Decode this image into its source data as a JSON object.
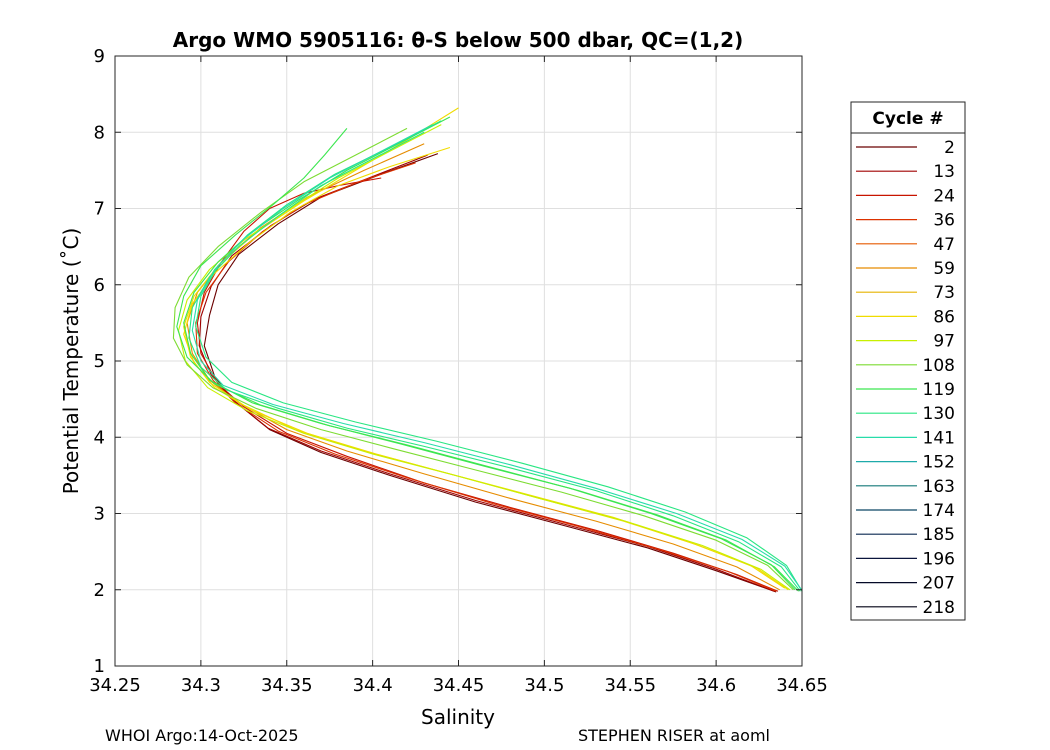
{
  "chart_data": {
    "type": "line",
    "title": "Argo WMO 5905116: θ-S below 500 dbar,  QC=(1,2)",
    "xlabel": "Salinity",
    "ylabel": "Potential Temperature (˚C)",
    "xlim": [
      34.25,
      34.65
    ],
    "ylim": [
      1,
      9
    ],
    "xticks": [
      "34.25",
      "34.3",
      "34.35",
      "34.4",
      "34.45",
      "34.5",
      "34.55",
      "34.6",
      "34.65"
    ],
    "yticks": [
      "1",
      "2",
      "3",
      "4",
      "5",
      "6",
      "7",
      "8",
      "9"
    ],
    "grid": true,
    "legend_position": "right-outside",
    "legend_title": "Cycle #",
    "legend": [
      {
        "label": "2",
        "color": "#6b0000"
      },
      {
        "label": "13",
        "color": "#a00000"
      },
      {
        "label": "24",
        "color": "#c81400"
      },
      {
        "label": "36",
        "color": "#dc3200"
      },
      {
        "label": "47",
        "color": "#e65a00"
      },
      {
        "label": "59",
        "color": "#e68c00"
      },
      {
        "label": "73",
        "color": "#e6b400"
      },
      {
        "label": "86",
        "color": "#f0dc00"
      },
      {
        "label": "97",
        "color": "#c8f000"
      },
      {
        "label": "108",
        "color": "#7ddc32"
      },
      {
        "label": "119",
        "color": "#3ce650"
      },
      {
        "label": "130",
        "color": "#28e682"
      },
      {
        "label": "141",
        "color": "#28dcaa"
      },
      {
        "label": "152",
        "color": "#1eaaaa"
      },
      {
        "label": "163",
        "color": "#147878"
      },
      {
        "label": "174",
        "color": "#0a4664"
      },
      {
        "label": "185",
        "color": "#0a2850"
      },
      {
        "label": "196",
        "color": "#0a143c"
      },
      {
        "label": "207",
        "color": "#050a28"
      },
      {
        "label": "218",
        "color": "#000014"
      }
    ],
    "series": [
      {
        "color": "#6b0000",
        "points": [
          [
            34.438,
            7.72
          ],
          [
            34.405,
            7.45
          ],
          [
            34.37,
            7.15
          ],
          [
            34.345,
            6.8
          ],
          [
            34.322,
            6.4
          ],
          [
            34.31,
            6.0
          ],
          [
            34.305,
            5.6
          ],
          [
            34.302,
            5.2
          ],
          [
            34.308,
            4.8
          ],
          [
            34.318,
            4.5
          ],
          [
            34.34,
            4.1
          ],
          [
            34.37,
            3.8
          ],
          [
            34.41,
            3.5
          ],
          [
            34.46,
            3.15
          ],
          [
            34.51,
            2.85
          ],
          [
            34.56,
            2.55
          ],
          [
            34.6,
            2.25
          ],
          [
            34.635,
            1.97
          ]
        ]
      },
      {
        "color": "#a00000",
        "points": [
          [
            34.432,
            7.7
          ],
          [
            34.4,
            7.42
          ],
          [
            34.366,
            7.12
          ],
          [
            34.341,
            6.78
          ],
          [
            34.318,
            6.38
          ],
          [
            34.306,
            5.98
          ],
          [
            34.3,
            5.58
          ],
          [
            34.299,
            5.2
          ],
          [
            34.306,
            4.82
          ],
          [
            34.317,
            4.52
          ],
          [
            34.339,
            4.12
          ],
          [
            34.37,
            3.82
          ],
          [
            34.41,
            3.52
          ],
          [
            34.46,
            3.17
          ],
          [
            34.51,
            2.87
          ],
          [
            34.56,
            2.57
          ],
          [
            34.6,
            2.27
          ],
          [
            34.634,
            1.98
          ]
        ]
      },
      {
        "color": "#c81400",
        "points": [
          [
            34.405,
            7.4
          ],
          [
            34.38,
            7.3
          ],
          [
            34.36,
            7.2
          ],
          [
            34.34,
            7.0
          ],
          [
            34.325,
            6.7
          ],
          [
            34.312,
            6.3
          ],
          [
            34.302,
            5.9
          ],
          [
            34.298,
            5.5
          ],
          [
            34.3,
            5.1
          ],
          [
            34.31,
            4.7
          ],
          [
            34.325,
            4.4
          ],
          [
            34.35,
            4.05
          ],
          [
            34.385,
            3.75
          ],
          [
            34.43,
            3.4
          ],
          [
            34.48,
            3.08
          ],
          [
            34.53,
            2.78
          ],
          [
            34.575,
            2.48
          ],
          [
            34.612,
            2.2
          ],
          [
            34.636,
            1.98
          ]
        ]
      },
      {
        "color": "#dc3200",
        "points": [
          [
            34.425,
            7.6
          ],
          [
            34.392,
            7.35
          ],
          [
            34.36,
            7.05
          ],
          [
            34.336,
            6.7
          ],
          [
            34.316,
            6.3
          ],
          [
            34.303,
            5.9
          ],
          [
            34.297,
            5.5
          ],
          [
            34.298,
            5.1
          ],
          [
            34.307,
            4.75
          ],
          [
            34.32,
            4.45
          ],
          [
            34.345,
            4.08
          ],
          [
            34.378,
            3.78
          ],
          [
            34.42,
            3.47
          ],
          [
            34.47,
            3.13
          ],
          [
            34.52,
            2.83
          ],
          [
            34.568,
            2.52
          ],
          [
            34.607,
            2.24
          ],
          [
            34.635,
            1.98
          ]
        ]
      },
      {
        "color": "#e68c00",
        "points": [
          [
            34.43,
            7.85
          ],
          [
            34.395,
            7.5
          ],
          [
            34.362,
            7.15
          ],
          [
            34.335,
            6.75
          ],
          [
            34.312,
            6.3
          ],
          [
            34.298,
            5.9
          ],
          [
            34.292,
            5.5
          ],
          [
            34.295,
            5.1
          ],
          [
            34.305,
            4.75
          ],
          [
            34.322,
            4.45
          ],
          [
            34.35,
            4.1
          ],
          [
            34.385,
            3.82
          ],
          [
            34.43,
            3.52
          ],
          [
            34.48,
            3.2
          ],
          [
            34.53,
            2.9
          ],
          [
            34.575,
            2.6
          ],
          [
            34.612,
            2.3
          ],
          [
            34.637,
            2.0
          ]
        ]
      },
      {
        "color": "#f0dc00",
        "points": [
          [
            34.45,
            8.32
          ],
          [
            34.42,
            7.9
          ],
          [
            34.39,
            7.5
          ],
          [
            34.36,
            7.1
          ],
          [
            34.333,
            6.7
          ],
          [
            34.31,
            6.25
          ],
          [
            34.296,
            5.85
          ],
          [
            34.29,
            5.45
          ],
          [
            34.294,
            5.05
          ],
          [
            34.305,
            4.72
          ],
          [
            34.325,
            4.42
          ],
          [
            34.355,
            4.1
          ],
          [
            34.395,
            3.82
          ],
          [
            34.44,
            3.55
          ],
          [
            34.49,
            3.25
          ],
          [
            34.54,
            2.95
          ],
          [
            34.585,
            2.62
          ],
          [
            34.62,
            2.32
          ],
          [
            34.64,
            2.02
          ]
        ]
      },
      {
        "color": "#f0dc00",
        "points": [
          [
            34.445,
            7.8
          ],
          [
            34.41,
            7.55
          ],
          [
            34.38,
            7.3
          ],
          [
            34.352,
            6.95
          ],
          [
            34.328,
            6.55
          ],
          [
            34.308,
            6.15
          ],
          [
            34.295,
            5.75
          ],
          [
            34.29,
            5.35
          ],
          [
            34.296,
            4.98
          ],
          [
            34.308,
            4.65
          ],
          [
            34.33,
            4.35
          ],
          [
            34.362,
            4.05
          ],
          [
            34.402,
            3.78
          ],
          [
            34.448,
            3.5
          ],
          [
            34.497,
            3.2
          ],
          [
            34.546,
            2.9
          ],
          [
            34.59,
            2.58
          ],
          [
            34.624,
            2.28
          ],
          [
            34.642,
            2.0
          ]
        ]
      },
      {
        "color": "#c8f000",
        "points": [
          [
            34.44,
            8.1
          ],
          [
            34.41,
            7.75
          ],
          [
            34.38,
            7.4
          ],
          [
            34.352,
            7.0
          ],
          [
            34.326,
            6.6
          ],
          [
            34.305,
            6.2
          ],
          [
            34.292,
            5.8
          ],
          [
            34.287,
            5.4
          ],
          [
            34.291,
            5.0
          ],
          [
            34.304,
            4.65
          ],
          [
            34.327,
            4.35
          ],
          [
            34.36,
            4.05
          ],
          [
            34.4,
            3.78
          ],
          [
            34.448,
            3.5
          ],
          [
            34.497,
            3.2
          ],
          [
            34.547,
            2.9
          ],
          [
            34.592,
            2.58
          ],
          [
            34.626,
            2.27
          ],
          [
            34.643,
            2.0
          ]
        ]
      },
      {
        "color": "#7ddc32",
        "points": [
          [
            34.42,
            8.05
          ],
          [
            34.39,
            7.7
          ],
          [
            34.36,
            7.35
          ],
          [
            34.335,
            6.95
          ],
          [
            34.31,
            6.5
          ],
          [
            34.293,
            6.1
          ],
          [
            34.285,
            5.7
          ],
          [
            34.284,
            5.3
          ],
          [
            34.292,
            4.95
          ],
          [
            34.307,
            4.65
          ],
          [
            34.332,
            4.38
          ],
          [
            34.37,
            4.1
          ],
          [
            34.412,
            3.85
          ],
          [
            34.46,
            3.57
          ],
          [
            34.51,
            3.28
          ],
          [
            34.558,
            2.97
          ],
          [
            34.6,
            2.65
          ],
          [
            34.63,
            2.32
          ],
          [
            34.645,
            2.0
          ]
        ]
      },
      {
        "color": "#3ce650",
        "points": [
          [
            34.445,
            8.2
          ],
          [
            34.415,
            7.85
          ],
          [
            34.385,
            7.5
          ],
          [
            34.356,
            7.1
          ],
          [
            34.33,
            6.7
          ],
          [
            34.31,
            6.3
          ],
          [
            34.296,
            5.9
          ],
          [
            34.29,
            5.5
          ],
          [
            34.294,
            5.1
          ],
          [
            34.305,
            4.75
          ],
          [
            34.33,
            4.45
          ],
          [
            34.37,
            4.18
          ],
          [
            34.415,
            3.92
          ],
          [
            34.465,
            3.62
          ],
          [
            34.515,
            3.33
          ],
          [
            34.562,
            3.0
          ],
          [
            34.603,
            2.67
          ],
          [
            34.632,
            2.33
          ],
          [
            34.646,
            2.0
          ]
        ]
      },
      {
        "color": "#3ce650",
        "points": [
          [
            34.385,
            8.05
          ],
          [
            34.372,
            7.7
          ],
          [
            34.36,
            7.4
          ],
          [
            34.342,
            7.05
          ],
          [
            34.32,
            6.65
          ],
          [
            34.3,
            6.25
          ],
          [
            34.29,
            5.85
          ],
          [
            34.286,
            5.45
          ],
          [
            34.292,
            5.05
          ],
          [
            34.308,
            4.7
          ],
          [
            34.335,
            4.42
          ],
          [
            34.375,
            4.15
          ],
          [
            34.42,
            3.9
          ],
          [
            34.47,
            3.6
          ],
          [
            34.52,
            3.3
          ],
          [
            34.566,
            2.98
          ],
          [
            34.606,
            2.65
          ],
          [
            34.634,
            2.3
          ],
          [
            34.648,
            1.98
          ]
        ]
      },
      {
        "color": "#28e682",
        "points": [
          [
            34.43,
            8.0
          ],
          [
            34.4,
            7.65
          ],
          [
            34.37,
            7.3
          ],
          [
            34.345,
            6.9
          ],
          [
            34.322,
            6.5
          ],
          [
            34.305,
            6.1
          ],
          [
            34.295,
            5.7
          ],
          [
            34.293,
            5.3
          ],
          [
            34.3,
            4.92
          ],
          [
            34.315,
            4.62
          ],
          [
            34.345,
            4.38
          ],
          [
            34.385,
            4.12
          ],
          [
            34.43,
            3.88
          ],
          [
            34.48,
            3.6
          ],
          [
            34.53,
            3.3
          ],
          [
            34.575,
            2.97
          ],
          [
            34.613,
            2.63
          ],
          [
            34.638,
            2.3
          ],
          [
            34.649,
            1.98
          ]
        ]
      },
      {
        "color": "#28e682",
        "points": [
          [
            34.44,
            8.15
          ],
          [
            34.41,
            7.8
          ],
          [
            34.378,
            7.45
          ],
          [
            34.35,
            7.05
          ],
          [
            34.327,
            6.65
          ],
          [
            34.31,
            6.25
          ],
          [
            34.3,
            5.85
          ],
          [
            34.297,
            5.45
          ],
          [
            34.303,
            5.05
          ],
          [
            34.318,
            4.72
          ],
          [
            34.348,
            4.45
          ],
          [
            34.39,
            4.2
          ],
          [
            34.437,
            3.95
          ],
          [
            34.487,
            3.66
          ],
          [
            34.537,
            3.35
          ],
          [
            34.582,
            3.02
          ],
          [
            34.618,
            2.68
          ],
          [
            34.641,
            2.32
          ],
          [
            34.65,
            1.98
          ]
        ]
      },
      {
        "color": "#28dcaa",
        "points": [
          [
            34.435,
            8.1
          ],
          [
            34.405,
            7.75
          ],
          [
            34.375,
            7.4
          ],
          [
            34.348,
            7.0
          ],
          [
            34.325,
            6.6
          ],
          [
            34.308,
            6.2
          ],
          [
            34.298,
            5.8
          ],
          [
            34.295,
            5.4
          ],
          [
            34.3,
            5.0
          ],
          [
            34.313,
            4.68
          ],
          [
            34.342,
            4.43
          ],
          [
            34.383,
            4.18
          ],
          [
            34.43,
            3.93
          ],
          [
            34.48,
            3.64
          ],
          [
            34.53,
            3.33
          ],
          [
            34.577,
            3.0
          ],
          [
            34.615,
            2.66
          ],
          [
            34.64,
            2.31
          ],
          [
            34.65,
            1.99
          ]
        ]
      }
    ]
  },
  "footer": {
    "left": "WHOI Argo:14-Oct-2025",
    "right": "STEPHEN RISER at aoml"
  }
}
